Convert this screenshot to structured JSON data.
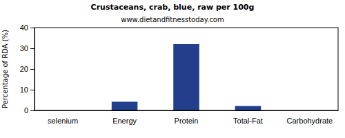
{
  "chart_data": {
    "type": "bar",
    "title": "Crustaceans, crab, blue, raw per 100g",
    "subtitle": "www.dietandfitnesstoday.com",
    "y_label": "Percentage of RDA (%)",
    "categories": [
      "selenium",
      "Energy",
      "Protein",
      "Total-Fat",
      "Carbohydrate"
    ],
    "values": [
      0,
      4.2,
      32,
      2.1,
      0
    ],
    "color": "#233f8c",
    "ylim": [
      0,
      40
    ],
    "yticks": [
      0,
      10,
      20,
      30,
      40
    ],
    "grid": false
  }
}
